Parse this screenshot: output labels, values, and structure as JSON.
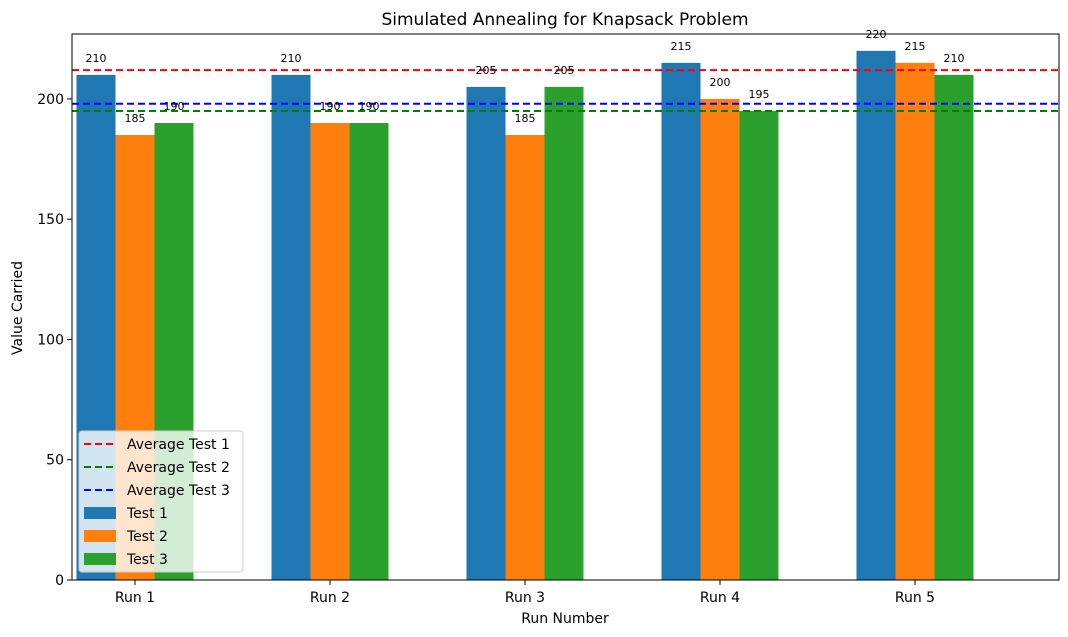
{
  "chart_data": {
    "type": "bar",
    "title": "Simulated Annealing for Knapsack Problem",
    "xlabel": "Run Number",
    "ylabel": "Value Carried",
    "categories": [
      "Run 1",
      "Run 2",
      "Run 3",
      "Run 4",
      "Run 5"
    ],
    "ylim": [
      0,
      227
    ],
    "yticks": [
      0,
      50,
      100,
      150,
      200
    ],
    "grid": false,
    "legend_position": "lower-left",
    "series": [
      {
        "name": "Test 1",
        "color": "#1f77b4",
        "values": [
          210,
          210,
          205,
          215,
          220
        ]
      },
      {
        "name": "Test 2",
        "color": "#ff7f0e",
        "values": [
          185,
          190,
          185,
          200,
          215
        ]
      },
      {
        "name": "Test 3",
        "color": "#2ca02c",
        "values": [
          190,
          190,
          205,
          195,
          210
        ]
      }
    ],
    "average_lines": [
      {
        "name": "Average Test 1",
        "color": "#ff0000",
        "value": 212
      },
      {
        "name": "Average Test 2",
        "color": "#008000",
        "value": 195
      },
      {
        "name": "Average Test 3",
        "color": "#0000ff",
        "value": 198
      }
    ]
  }
}
